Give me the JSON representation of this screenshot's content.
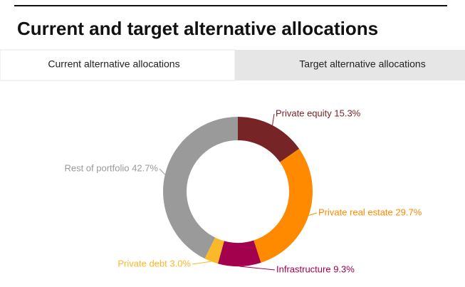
{
  "tabs": [
    "Current alternative allocations",
    "Target alternative allocations"
  ],
  "chart_data": {
    "type": "donut",
    "title": "Current and target alternative allocations",
    "values": [
      15.3,
      29.7,
      9.3,
      3.0,
      42.7
    ],
    "value_labels": [
      "Private equity 15.3%",
      "Private real estate 29.7%",
      "Infrastructure 9.3%",
      "Private debt 3.0%",
      "Rest of portfolio 42.7%"
    ],
    "colors": [
      "#772427",
      "#ff8a00",
      "#a3004e",
      "#fbb829",
      "#9a9a9a"
    ]
  }
}
